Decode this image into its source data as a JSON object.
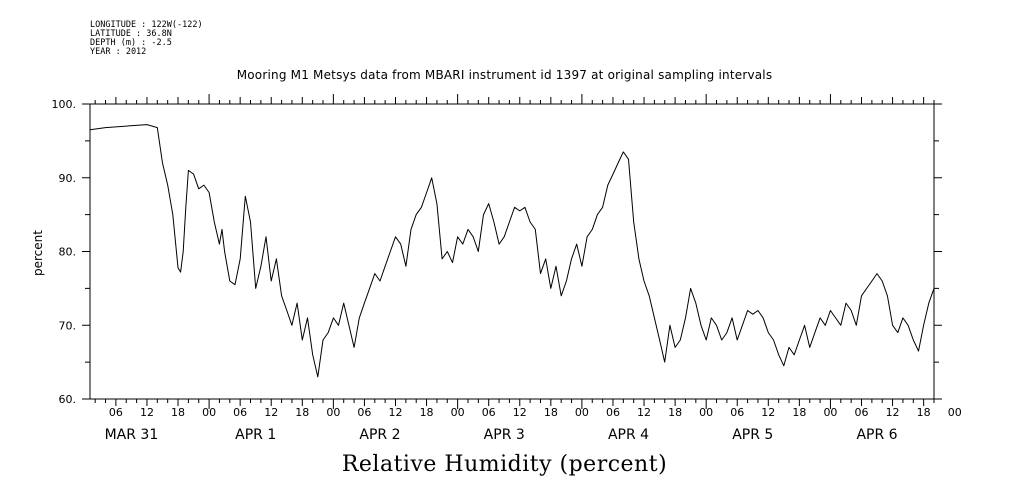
{
  "metadata": {
    "longitude": "LONGITUDE : 122W(-122)",
    "latitude": "LATITUDE : 36.8N",
    "depth": "DEPTH (m) : -2.5",
    "year": "YEAR : 2012"
  },
  "chart_data": {
    "type": "line",
    "title": "Mooring M1 Metsys data from MBARI instrument id 1397 at original sampling intervals",
    "footer_title": "Relative Humidity (percent)",
    "ylabel": "percent",
    "xlabel": "",
    "ylim": [
      60,
      100
    ],
    "yticks": [
      "60.",
      "70.",
      "80.",
      "90.",
      "100."
    ],
    "x_units": "hours since 2012-03-31 00:00",
    "xlim": [
      1,
      164
    ],
    "hour_tick_labels": [
      "06",
      "12",
      "18",
      "00",
      "06",
      "12",
      "18",
      "00",
      "06",
      "12",
      "18",
      "00",
      "06",
      "12",
      "18",
      "00",
      "06",
      "12",
      "18",
      "00",
      "06",
      "12",
      "18",
      "00",
      "06",
      "12",
      "18",
      "00"
    ],
    "day_labels": [
      "MAR 31",
      "APR  1",
      "APR  2",
      "APR  3",
      "APR  4",
      "APR  5",
      "APR  6"
    ],
    "grid": false,
    "series": [
      {
        "x": [
          1,
          4,
          8,
          12,
          14,
          15,
          16,
          17,
          18,
          18.5,
          19,
          19.5,
          20,
          21,
          22,
          23,
          24,
          25,
          26,
          26.5,
          27,
          28,
          29,
          30,
          31,
          32,
          33,
          34,
          35,
          36,
          37,
          38,
          39,
          40,
          41,
          42,
          43,
          44,
          45,
          46,
          47,
          48,
          49,
          50,
          51,
          52,
          53,
          54,
          55,
          56,
          57,
          58,
          59,
          60,
          61,
          62,
          63,
          64,
          65,
          66,
          67,
          68,
          69,
          70,
          71,
          72,
          73,
          74,
          75,
          76,
          77,
          78,
          79,
          80,
          81,
          82,
          83,
          84,
          85,
          86,
          87,
          88,
          89,
          90,
          91,
          92,
          93,
          94,
          95,
          96,
          97,
          98,
          99,
          100,
          101,
          102,
          103,
          104,
          105,
          106,
          107,
          108,
          109,
          110,
          111,
          112,
          113,
          114,
          115,
          116,
          117,
          118,
          119,
          120,
          121,
          122,
          123,
          124,
          125,
          126,
          127,
          128,
          129,
          130,
          131,
          132,
          133,
          134,
          135,
          136,
          137,
          138,
          139,
          140,
          141,
          142,
          143,
          144,
          145,
          146,
          147,
          148,
          149,
          150,
          151,
          152,
          153,
          154,
          155,
          156,
          157,
          158,
          159,
          160,
          161,
          162,
          163,
          164
        ],
        "y": [
          96.5,
          96.8,
          97.0,
          97.2,
          96.8,
          92.0,
          89.0,
          85.0,
          77.8,
          77.2,
          80.0,
          86.0,
          91.0,
          90.5,
          88.5,
          89.0,
          88.0,
          84.0,
          81.0,
          83.0,
          80.0,
          76.0,
          75.5,
          79.0,
          87.5,
          84.0,
          75.0,
          78.0,
          82.0,
          76.0,
          79.0,
          74.0,
          72.0,
          70.0,
          73.0,
          68.0,
          71.0,
          66.0,
          63.0,
          68.0,
          69.0,
          71.0,
          70.0,
          73.0,
          70.0,
          67.0,
          71.0,
          73.0,
          75.0,
          77.0,
          76.0,
          78.0,
          80.0,
          82.0,
          81.0,
          78.0,
          83.0,
          85.0,
          86.0,
          88.0,
          90.0,
          86.5,
          79.0,
          80.0,
          78.5,
          82.0,
          81.0,
          83.0,
          82.0,
          80.0,
          85.0,
          86.5,
          84.0,
          81.0,
          82.0,
          84.0,
          86.0,
          85.5,
          86.0,
          84.0,
          83.0,
          77.0,
          79.0,
          75.0,
          78.0,
          74.0,
          76.0,
          79.0,
          81.0,
          78.0,
          82.0,
          83.0,
          85.0,
          86.0,
          89.0,
          90.5,
          92.0,
          93.5,
          92.5,
          84.0,
          79.0,
          76.0,
          74.0,
          71.0,
          68.0,
          65.0,
          70.0,
          67.0,
          68.0,
          71.0,
          75.0,
          73.0,
          70.0,
          68.0,
          71.0,
          70.0,
          68.0,
          69.0,
          71.0,
          68.0,
          70.0,
          72.0,
          71.5,
          72.0,
          71.0,
          69.0,
          68.0,
          66.0,
          64.5,
          67.0,
          66.0,
          68.0,
          70.0,
          67.0,
          69.0,
          71.0,
          70.0,
          72.0,
          71.0,
          70.0,
          73.0,
          72.0,
          70.0,
          74.0,
          75.0,
          76.0,
          77.0,
          76.0,
          74.0,
          70.0,
          69.0,
          71.0,
          70.0,
          68.0,
          66.5,
          70.0,
          73.0,
          75.0
        ]
      }
    ]
  }
}
